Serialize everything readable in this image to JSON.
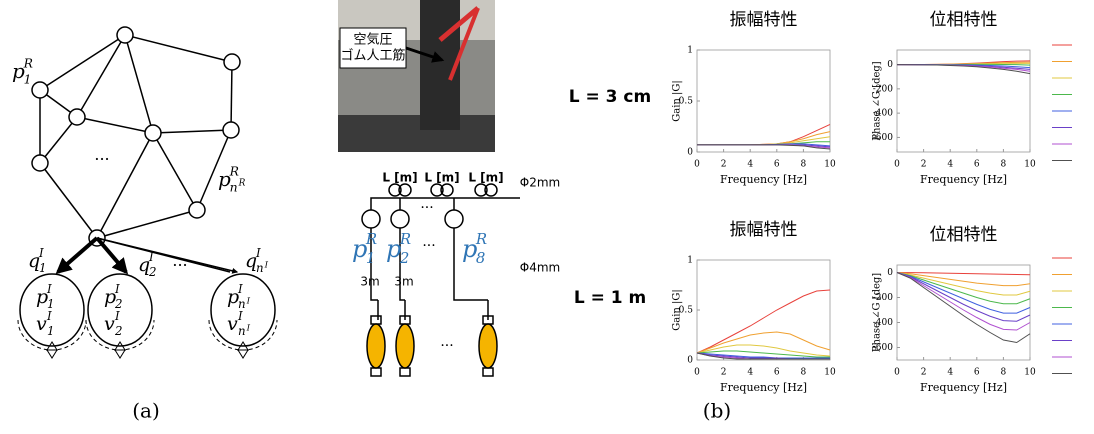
{
  "panel_a": {
    "label": "(a)",
    "ellipsis": "···",
    "pR": [
      {
        "base": "p",
        "sub": "1",
        "sup": "R"
      },
      {
        "base": "p",
        "sub": "n",
        "subsup": "R",
        "sup": "R"
      }
    ],
    "q": [
      {
        "base": "q",
        "sub": "1",
        "sup": "I"
      },
      {
        "base": "q",
        "sub": "2",
        "sup": "I"
      },
      {
        "base": "q",
        "sub": "n",
        "subsup": "I",
        "sup": "I"
      }
    ],
    "q_ellipsis": "···",
    "cells": [
      {
        "p": {
          "base": "p",
          "sub": "1",
          "sup": "I"
        },
        "v": {
          "base": "v",
          "sub": "1",
          "sup": "I"
        }
      },
      {
        "p": {
          "base": "p",
          "sub": "2",
          "sup": "I"
        },
        "v": {
          "base": "v",
          "sub": "2",
          "sup": "I"
        }
      },
      {
        "p": {
          "base": "p",
          "sub": "n",
          "subsup": "I",
          "sup": "I"
        },
        "v": {
          "base": "v",
          "sub": "n",
          "subsup": "I",
          "sup": "I"
        }
      }
    ]
  },
  "panel_b": {
    "label": "(b)",
    "photo_label": [
      "空気圧",
      "ゴム人工筋"
    ],
    "tube_labels": [
      "L [m]",
      "L [m]",
      "L [m]"
    ],
    "thin_tube": "Φ2mm",
    "thick_tube": "Φ4mm",
    "lengths": [
      "3m",
      "3m"
    ],
    "ellipsis": "···",
    "pressures": [
      {
        "base": "p",
        "sub": "1",
        "sup": "R"
      },
      {
        "base": "p",
        "sub": "2",
        "sup": "R"
      },
      {
        "base": "p",
        "sub": "8",
        "sup": "R"
      }
    ],
    "row_labels": [
      "L = 3 cm",
      "L = 1 m"
    ]
  },
  "chart_data": [
    {
      "type": "line",
      "title": "振幅特性",
      "xlabel": "Frequency [Hz]",
      "ylabel": "Gain |G|",
      "x": [
        0,
        1,
        2,
        3,
        4,
        5,
        6,
        7,
        8,
        9,
        10
      ],
      "xlim": [
        0,
        10
      ],
      "xticks": [
        0,
        2,
        4,
        6,
        8,
        10
      ],
      "ylim": [
        0,
        1
      ],
      "yticks": [
        0,
        0.5,
        1
      ],
      "series": [
        {
          "color": "#e8413b",
          "values": [
            0.07,
            0.07,
            0.07,
            0.07,
            0.07,
            0.075,
            0.08,
            0.1,
            0.15,
            0.21,
            0.27
          ]
        },
        {
          "color": "#f0a030",
          "values": [
            0.07,
            0.07,
            0.07,
            0.07,
            0.07,
            0.075,
            0.08,
            0.1,
            0.13,
            0.17,
            0.2
          ]
        },
        {
          "color": "#e0c840",
          "values": [
            0.07,
            0.07,
            0.07,
            0.07,
            0.07,
            0.07,
            0.08,
            0.09,
            0.11,
            0.13,
            0.15
          ]
        },
        {
          "color": "#4cb84c",
          "values": [
            0.07,
            0.07,
            0.07,
            0.07,
            0.07,
            0.07,
            0.075,
            0.08,
            0.09,
            0.1,
            0.1
          ]
        },
        {
          "color": "#4060e0",
          "values": [
            0.07,
            0.07,
            0.07,
            0.07,
            0.07,
            0.07,
            0.075,
            0.08,
            0.08,
            0.07,
            0.06
          ]
        },
        {
          "color": "#6a40c8",
          "values": [
            0.07,
            0.07,
            0.07,
            0.07,
            0.07,
            0.07,
            0.07,
            0.07,
            0.07,
            0.06,
            0.05
          ]
        },
        {
          "color": "#b050d0",
          "values": [
            0.07,
            0.07,
            0.07,
            0.07,
            0.07,
            0.07,
            0.07,
            0.07,
            0.06,
            0.05,
            0.04
          ]
        },
        {
          "color": "#505050",
          "values": [
            0.07,
            0.07,
            0.07,
            0.07,
            0.07,
            0.07,
            0.07,
            0.065,
            0.06,
            0.04,
            0.03
          ]
        }
      ]
    },
    {
      "type": "line",
      "title": "位相特性",
      "xlabel": "Frequency [Hz]",
      "ylabel": "Phase ∠G [deg]",
      "x": [
        0,
        1,
        2,
        3,
        4,
        5,
        6,
        7,
        8,
        9,
        10
      ],
      "xlim": [
        0,
        10
      ],
      "xticks": [
        0,
        2,
        4,
        6,
        8,
        10
      ],
      "ylim": [
        -720,
        120
      ],
      "yticks": [
        -600,
        -400,
        -200,
        0
      ],
      "series": [
        {
          "color": "#e8413b",
          "values": [
            0,
            0,
            1,
            2,
            4,
            8,
            12,
            18,
            24,
            28,
            30
          ]
        },
        {
          "color": "#f0a030",
          "values": [
            0,
            0,
            1,
            2,
            3,
            6,
            9,
            12,
            16,
            18,
            20
          ]
        },
        {
          "color": "#e0c840",
          "values": [
            0,
            0,
            0,
            1,
            2,
            4,
            6,
            8,
            10,
            10,
            10
          ]
        },
        {
          "color": "#4cb84c",
          "values": [
            0,
            0,
            0,
            0,
            0,
            1,
            2,
            2,
            1,
            0,
            -5
          ]
        },
        {
          "color": "#4060e0",
          "values": [
            0,
            0,
            0,
            -1,
            -2,
            -3,
            -5,
            -8,
            -12,
            -18,
            -25
          ]
        },
        {
          "color": "#6a40c8",
          "values": [
            0,
            0,
            -1,
            -2,
            -4,
            -6,
            -10,
            -15,
            -22,
            -30,
            -40
          ]
        },
        {
          "color": "#b050d0",
          "values": [
            0,
            -1,
            -2,
            -3,
            -6,
            -9,
            -14,
            -20,
            -30,
            -40,
            -55
          ]
        },
        {
          "color": "#505050",
          "values": [
            0,
            -1,
            -2,
            -4,
            -8,
            -12,
            -18,
            -28,
            -40,
            -55,
            -75
          ]
        }
      ]
    },
    {
      "type": "line",
      "title": "振幅特性",
      "xlabel": "Frequency [Hz]",
      "ylabel": "Gain |G|",
      "x": [
        0,
        1,
        2,
        3,
        4,
        5,
        6,
        7,
        8,
        9,
        10
      ],
      "xlim": [
        0,
        10
      ],
      "xticks": [
        0,
        2,
        4,
        6,
        8,
        10
      ],
      "ylim": [
        0,
        1
      ],
      "yticks": [
        0,
        0.5,
        1
      ],
      "series": [
        {
          "color": "#e8413b",
          "values": [
            0.07,
            0.13,
            0.2,
            0.27,
            0.34,
            0.42,
            0.5,
            0.57,
            0.64,
            0.69,
            0.7
          ]
        },
        {
          "color": "#f0a030",
          "values": [
            0.07,
            0.12,
            0.17,
            0.21,
            0.25,
            0.27,
            0.28,
            0.26,
            0.2,
            0.14,
            0.1
          ]
        },
        {
          "color": "#e0c840",
          "values": [
            0.07,
            0.1,
            0.13,
            0.15,
            0.15,
            0.14,
            0.12,
            0.09,
            0.07,
            0.05,
            0.04
          ]
        },
        {
          "color": "#4cb84c",
          "values": [
            0.07,
            0.08,
            0.09,
            0.09,
            0.08,
            0.07,
            0.06,
            0.05,
            0.04,
            0.03,
            0.03
          ]
        },
        {
          "color": "#4060e0",
          "values": [
            0.07,
            0.06,
            0.05,
            0.04,
            0.03,
            0.03,
            0.02,
            0.02,
            0.02,
            0.02,
            0.02
          ]
        },
        {
          "color": "#6a40c8",
          "values": [
            0.07,
            0.05,
            0.04,
            0.03,
            0.02,
            0.02,
            0.02,
            0.01,
            0.01,
            0.01,
            0.01
          ]
        },
        {
          "color": "#b050d0",
          "values": [
            0.07,
            0.04,
            0.03,
            0.02,
            0.01,
            0.01,
            0.01,
            0.01,
            0.01,
            0.01,
            0.01
          ]
        },
        {
          "color": "#505050",
          "values": [
            0.07,
            0.04,
            0.02,
            0.01,
            0.01,
            0.01,
            0.01,
            0.01,
            0.01,
            0.01,
            0.01
          ]
        }
      ]
    },
    {
      "type": "line",
      "title": "位相特性",
      "xlabel": "Frequency [Hz]",
      "ylabel": "Phase ∠G [deg]",
      "x": [
        0,
        1,
        2,
        3,
        4,
        5,
        6,
        7,
        8,
        9,
        10
      ],
      "xlim": [
        0,
        10
      ],
      "xticks": [
        0,
        2,
        4,
        6,
        8,
        10
      ],
      "ylim": [
        -700,
        60
      ],
      "yticks": [
        -600,
        -400,
        -200,
        0
      ],
      "series": [
        {
          "color": "#e8413b",
          "values": [
            0,
            -1,
            -2,
            -4,
            -6,
            -8,
            -10,
            -12,
            -14,
            -16,
            -18
          ]
        },
        {
          "color": "#f0a030",
          "values": [
            0,
            -10,
            -25,
            -40,
            -55,
            -70,
            -85,
            -95,
            -105,
            -105,
            -90
          ]
        },
        {
          "color": "#e0c840",
          "values": [
            0,
            -20,
            -45,
            -70,
            -95,
            -120,
            -145,
            -165,
            -180,
            -180,
            -150
          ]
        },
        {
          "color": "#4cb84c",
          "values": [
            0,
            -25,
            -60,
            -95,
            -130,
            -165,
            -200,
            -230,
            -250,
            -250,
            -210
          ]
        },
        {
          "color": "#4060e0",
          "values": [
            0,
            -30,
            -75,
            -120,
            -165,
            -210,
            -255,
            -295,
            -325,
            -325,
            -280
          ]
        },
        {
          "color": "#6a40c8",
          "values": [
            0,
            -35,
            -90,
            -145,
            -200,
            -255,
            -305,
            -350,
            -385,
            -390,
            -340
          ]
        },
        {
          "color": "#b050d0",
          "values": [
            0,
            -40,
            -105,
            -170,
            -235,
            -300,
            -360,
            -415,
            -455,
            -460,
            -400
          ]
        },
        {
          "color": "#505050",
          "values": [
            0,
            -45,
            -120,
            -195,
            -270,
            -345,
            -415,
            -480,
            -540,
            -560,
            -490
          ]
        }
      ]
    }
  ]
}
